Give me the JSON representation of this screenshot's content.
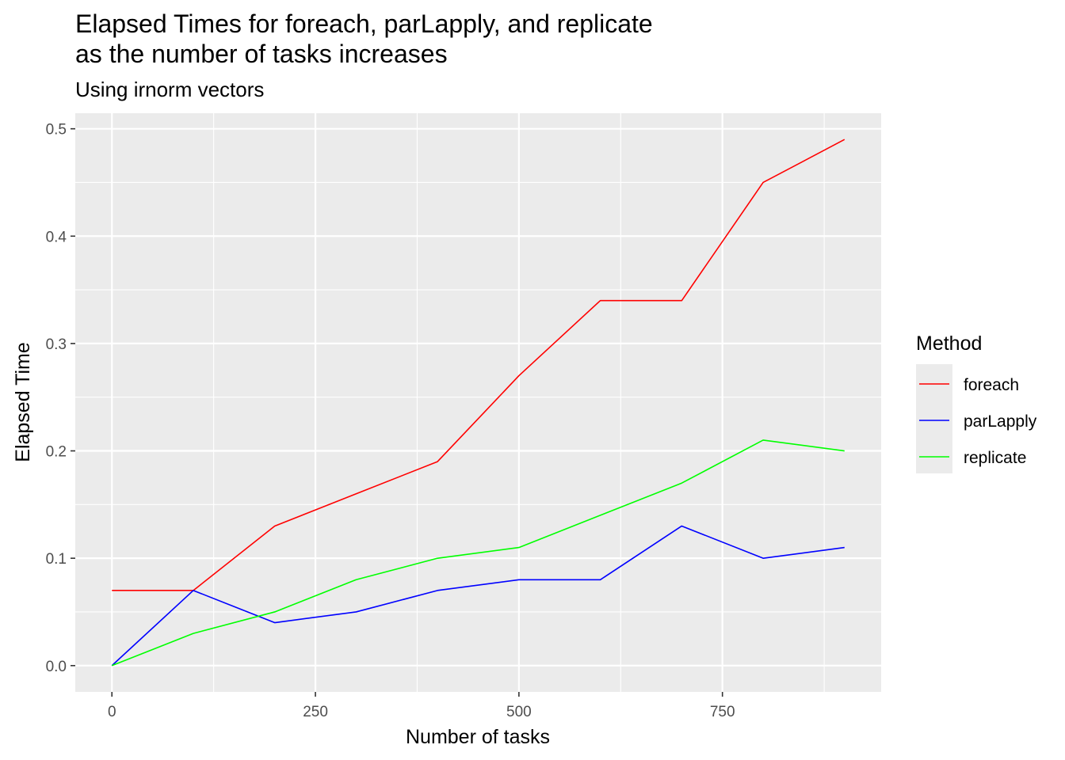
{
  "chart_data": {
    "type": "line",
    "title_lines": [
      "Elapsed Times for foreach, parLapply, and replicate",
      "as the number of tasks increases"
    ],
    "subtitle": "Using irnorm vectors",
    "xlabel": "Number of tasks",
    "ylabel": "Elapsed Time",
    "xlim": [
      -45,
      945
    ],
    "ylim": [
      -0.0245,
      0.5145
    ],
    "x_ticks": [
      0,
      250,
      500,
      750
    ],
    "x_tick_labels": [
      "0",
      "250",
      "500",
      "750"
    ],
    "y_ticks": [
      0.0,
      0.1,
      0.2,
      0.3,
      0.4,
      0.5
    ],
    "y_tick_labels": [
      "0.0",
      "0.1",
      "0.2",
      "0.3",
      "0.4",
      "0.5"
    ],
    "grid": true,
    "panel_background": "#ebebeb",
    "legend": {
      "title": "Method",
      "placement": "right"
    },
    "x": [
      0,
      100,
      200,
      300,
      400,
      500,
      600,
      700,
      800,
      900
    ],
    "series": [
      {
        "name": "foreach",
        "color": "#ff0000",
        "values": [
          0.07,
          0.07,
          0.13,
          0.16,
          0.19,
          0.27,
          0.34,
          0.34,
          0.45,
          0.49
        ]
      },
      {
        "name": "parLapply",
        "color": "#0000ff",
        "values": [
          0.0,
          0.07,
          0.04,
          0.05,
          0.07,
          0.08,
          0.08,
          0.13,
          0.1,
          0.11
        ]
      },
      {
        "name": "replicate",
        "color": "#00ff00",
        "values": [
          0.0,
          0.03,
          0.05,
          0.08,
          0.1,
          0.11,
          0.14,
          0.17,
          0.21,
          0.2
        ]
      }
    ]
  }
}
